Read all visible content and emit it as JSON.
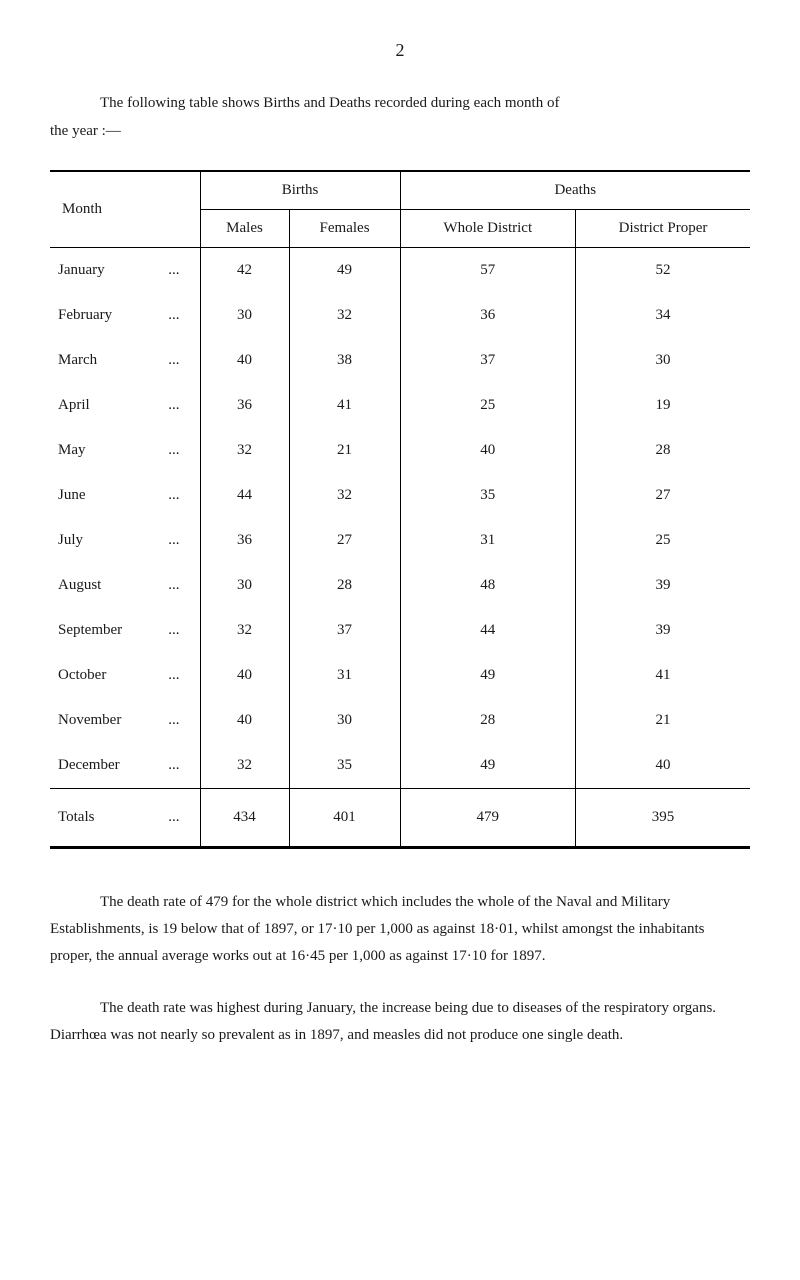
{
  "page_number": "2",
  "intro_line1": "The following table shows Births and Deaths recorded during each month of",
  "intro_line2": "the year :—",
  "table": {
    "header_month": "Month",
    "header_births": "Births",
    "header_deaths": "Deaths",
    "header_males": "Males",
    "header_females": "Females",
    "header_whole_district": "Whole District",
    "header_district_proper": "District Proper",
    "rows": [
      {
        "month": "January",
        "males": "42",
        "females": "49",
        "whole": "57",
        "proper": "52"
      },
      {
        "month": "February",
        "males": "30",
        "females": "32",
        "whole": "36",
        "proper": "34"
      },
      {
        "month": "March",
        "males": "40",
        "females": "38",
        "whole": "37",
        "proper": "30"
      },
      {
        "month": "April",
        "males": "36",
        "females": "41",
        "whole": "25",
        "proper": "19"
      },
      {
        "month": "May",
        "males": "32",
        "females": "21",
        "whole": "40",
        "proper": "28"
      },
      {
        "month": "June",
        "males": "44",
        "females": "32",
        "whole": "35",
        "proper": "27"
      },
      {
        "month": "July",
        "males": "36",
        "females": "27",
        "whole": "31",
        "proper": "25"
      },
      {
        "month": "August",
        "males": "30",
        "females": "28",
        "whole": "48",
        "proper": "39"
      },
      {
        "month": "September",
        "males": "32",
        "females": "37",
        "whole": "44",
        "proper": "39"
      },
      {
        "month": "October",
        "males": "40",
        "females": "31",
        "whole": "49",
        "proper": "41"
      },
      {
        "month": "November",
        "males": "40",
        "females": "30",
        "whole": "28",
        "proper": "21"
      },
      {
        "month": "December",
        "males": "32",
        "females": "35",
        "whole": "49",
        "proper": "40"
      }
    ],
    "totals_label": "Totals",
    "totals_males": "434",
    "totals_females": "401",
    "totals_whole": "479",
    "totals_proper": "395"
  },
  "paragraph1": "The death rate of 479 for the whole district which includes the whole of the Naval and Military Establishments, is 19 below that of 1897, or 17·10 per 1,000 as against 18·01, whilst amongst the inhabitants proper, the annual average works out at 16·45 per 1,000 as against 17·10 for 1897.",
  "paragraph2": "The death rate was highest during January, the increase being due to diseases of the respiratory organs. Diarrhœa was not nearly so prevalent as in 1897, and measles did not produce one single death.",
  "dots": "..."
}
